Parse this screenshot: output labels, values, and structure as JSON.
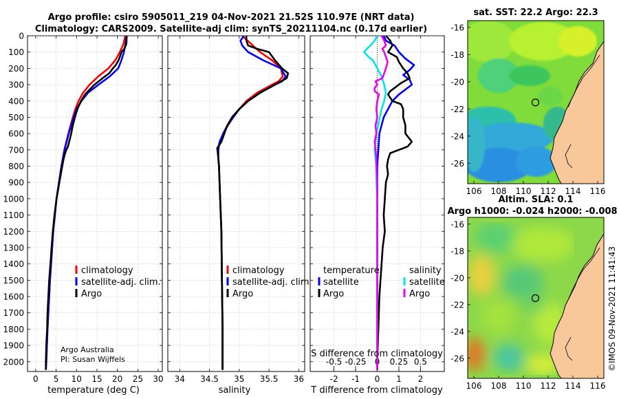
{
  "header": {
    "title_line1": "Argo profile: csiro 5905011_219 04-Nov-2021 21.52S 110.97E (NRT data)",
    "title_line2": "Climatology: CARS2009. Satellite-adj clim: synTS_20211104.nc (0.17d earlier)"
  },
  "colors": {
    "climatology": "#ff0000",
    "satellite_adj": "#0000ff",
    "argo": "#000000",
    "sat_salinity": "#00e5ee",
    "argo_salinity": "#ee00ee",
    "land": "#f8c89a"
  },
  "depth_axis": {
    "ticks": [
      "0",
      "100",
      "200",
      "300",
      "400",
      "500",
      "600",
      "700",
      "800",
      "900",
      "1000",
      "1100",
      "1200",
      "1300",
      "1400",
      "1500",
      "1600",
      "1700",
      "1800",
      "1900",
      "2000"
    ],
    "range": [
      0,
      2060
    ]
  },
  "legends": {
    "climatology": "climatology",
    "satellite_adj": "satellite-adj. clim.",
    "argo": "Argo",
    "temperature": "temperature",
    "salinity": "salinity",
    "satellite": "satellite"
  },
  "credits": {
    "line1": "Argo Australia",
    "line2": "PI: Susan Wijffels"
  },
  "watermark": "©IMOS 09-Nov-2021 11:41:43",
  "chart_data": [
    {
      "type": "line",
      "name": "temperature-profile",
      "xlabel": "temperature (deg C)",
      "ylabel": "depth",
      "xlim": [
        -2,
        31
      ],
      "ylim": [
        2060,
        0
      ],
      "xticks": [
        "0",
        "5",
        "10",
        "15",
        "20",
        "25",
        "30"
      ],
      "xtick_values": [
        0,
        5,
        10,
        15,
        20,
        25,
        30
      ],
      "series": [
        {
          "name": "climatology",
          "color": "#ff0000",
          "depth": [
            0,
            50,
            100,
            150,
            200,
            250,
            300,
            350,
            400,
            450,
            500,
            600,
            700,
            800,
            1000,
            1200,
            1500,
            1800,
            2000,
            2050
          ],
          "values": [
            21.9,
            21.5,
            20.6,
            19.5,
            17.8,
            15.3,
            13.2,
            11.6,
            10.5,
            9.7,
            9.1,
            8.0,
            7.0,
            6.3,
            5.1,
            4.3,
            3.5,
            2.9,
            2.6,
            2.5
          ]
        },
        {
          "name": "satellite-adj. clim.",
          "color": "#0000ff",
          "depth": [
            0,
            50,
            100,
            150,
            200,
            250,
            300,
            350,
            400,
            450,
            500,
            600,
            700,
            800,
            1000,
            1200,
            1500,
            1800,
            2000,
            2050
          ],
          "values": [
            22.2,
            22.0,
            21.6,
            21.0,
            20.2,
            18.1,
            15.4,
            12.8,
            11.2,
            10.0,
            9.3,
            8.1,
            7.1,
            6.3,
            5.1,
            4.3,
            3.5,
            2.9,
            2.6,
            2.5
          ]
        },
        {
          "name": "Argo",
          "color": "#000000",
          "depth": [
            0,
            50,
            80,
            100,
            130,
            150,
            180,
            200,
            230,
            260,
            300,
            330,
            360,
            400,
            450,
            500,
            560,
            600,
            640,
            680,
            700,
            730,
            760,
            800,
            900,
            1000,
            1100,
            1200,
            1300,
            1400,
            1500,
            1600,
            1700,
            1800,
            1900,
            2000,
            2050
          ],
          "values": [
            22.3,
            22.2,
            21.7,
            21.0,
            20.6,
            20.3,
            19.6,
            18.9,
            18.0,
            16.4,
            14.4,
            13.2,
            12.1,
            11.1,
            10.2,
            9.6,
            9.0,
            8.7,
            8.3,
            7.9,
            7.5,
            7.1,
            6.8,
            6.5,
            5.8,
            5.1,
            4.6,
            4.2,
            3.9,
            3.6,
            3.3,
            3.1,
            2.9,
            2.8,
            2.6,
            2.5,
            2.5
          ]
        }
      ]
    },
    {
      "type": "line",
      "name": "salinity-profile",
      "xlabel": "salinity",
      "ylabel": "depth",
      "xlim": [
        33.8,
        36.1
      ],
      "ylim": [
        2060,
        0
      ],
      "xticks": [
        "34",
        "34.5",
        "35",
        "35.5",
        "36"
      ],
      "xtick_values": [
        34,
        34.5,
        35,
        35.5,
        36
      ],
      "series": [
        {
          "name": "climatology",
          "color": "#ff0000",
          "depth": [
            0,
            50,
            100,
            150,
            200,
            250,
            280,
            300,
            350,
            400,
            450,
            500,
            550,
            600,
            650,
            700,
            750,
            800,
            1000,
            1200,
            1500,
            1800,
            2000,
            2050
          ],
          "values": [
            35.05,
            35.2,
            35.35,
            35.55,
            35.7,
            35.73,
            35.66,
            35.55,
            35.3,
            35.12,
            35.0,
            34.9,
            34.81,
            34.73,
            34.67,
            34.64,
            34.65,
            34.66,
            34.68,
            34.7,
            34.71,
            34.72,
            34.72,
            34.72
          ]
        },
        {
          "name": "satellite-adj. clim.",
          "color": "#0000ff",
          "depth": [
            0,
            30,
            60,
            100,
            150,
            200,
            250,
            280,
            300,
            350,
            400,
            450,
            500,
            550,
            600,
            650,
            700,
            750,
            800,
            1000,
            1200,
            1500,
            1800,
            2000,
            2050
          ],
          "values": [
            35.08,
            35.02,
            35.05,
            35.15,
            35.4,
            35.7,
            35.78,
            35.72,
            35.6,
            35.35,
            35.15,
            35.0,
            34.9,
            34.8,
            34.73,
            34.67,
            34.65,
            34.65,
            34.66,
            34.68,
            34.7,
            34.71,
            34.72,
            34.72,
            34.72
          ]
        },
        {
          "name": "Argo",
          "color": "#000000",
          "depth": [
            0,
            30,
            60,
            80,
            100,
            150,
            200,
            230,
            260,
            280,
            300,
            350,
            400,
            450,
            500,
            550,
            600,
            650,
            690,
            720,
            760,
            800,
            1000,
            1200,
            1500,
            1800,
            2000,
            2050
          ],
          "values": [
            35.12,
            35.12,
            35.15,
            35.3,
            35.5,
            35.6,
            35.72,
            35.82,
            35.8,
            35.7,
            35.6,
            35.35,
            35.15,
            35.0,
            34.88,
            34.8,
            34.75,
            34.7,
            34.63,
            34.64,
            34.65,
            34.66,
            34.68,
            34.7,
            34.71,
            34.72,
            34.72,
            34.72
          ]
        }
      ]
    },
    {
      "type": "line",
      "name": "difference-profile",
      "xlabel": "T difference from climatology",
      "x2label": "S difference from climatology",
      "ylabel": "depth",
      "xlim": [
        -3.1,
        3.1
      ],
      "ylim": [
        2060,
        0
      ],
      "xticks": [
        "-2",
        "-1",
        "0",
        "1",
        "2"
      ],
      "xtick_values": [
        -2,
        -1,
        0,
        1,
        2
      ],
      "x2ticks": [
        "-0.5",
        "-0.25",
        "0",
        "0.25",
        "0.5"
      ],
      "x2tick_values": [
        -0.5,
        -0.25,
        0,
        0.25,
        0.5
      ],
      "x2lim": [
        -0.775,
        0.775
      ],
      "zero_line": "dotted",
      "series": [
        {
          "name": "temperature satellite",
          "color": "#0000ff",
          "axis": "T",
          "depth": [
            0,
            30,
            60,
            100,
            140,
            180,
            210,
            240,
            270,
            300,
            330,
            360,
            400,
            450,
            500,
            600,
            700,
            800,
            1000,
            1500,
            2000,
            2050
          ],
          "values": [
            0.3,
            0.4,
            0.8,
            1.0,
            1.3,
            1.7,
            1.5,
            1.2,
            1.5,
            1.6,
            1.3,
            1.0,
            0.7,
            0.5,
            0.3,
            0.1,
            0.05,
            0.0,
            0.0,
            0.0,
            0.0,
            0.0
          ]
        },
        {
          "name": "temperature Argo",
          "color": "#000000",
          "axis": "T",
          "depth": [
            0,
            30,
            60,
            80,
            100,
            130,
            160,
            200,
            230,
            260,
            290,
            320,
            340,
            360,
            400,
            420,
            450,
            500,
            550,
            600,
            650,
            680,
            700,
            720,
            760,
            800,
            850,
            900,
            1000,
            1100,
            1200,
            1300,
            1400,
            1500,
            1600,
            1800,
            2000,
            2050
          ],
          "values": [
            0.4,
            0.6,
            0.7,
            0.6,
            0.5,
            0.9,
            1.0,
            1.2,
            1.4,
            1.5,
            1.1,
            0.8,
            0.6,
            0.5,
            0.7,
            1.1,
            1.2,
            1.2,
            1.3,
            1.3,
            1.6,
            1.4,
            1.0,
            0.6,
            0.5,
            0.45,
            0.5,
            0.4,
            0.35,
            0.3,
            0.35,
            0.25,
            0.2,
            0.15,
            0.1,
            0.05,
            0.0,
            0.0
          ]
        },
        {
          "name": "salinity satellite",
          "color": "#00e5ee",
          "axis": "S",
          "depth": [
            0,
            30,
            60,
            80,
            100,
            130,
            150,
            200,
            250,
            300,
            350,
            400,
            450,
            500,
            550,
            600,
            650,
            700,
            800,
            900,
            1000,
            1500,
            2000,
            2050
          ],
          "values": [
            0.0,
            -0.03,
            -0.08,
            -0.12,
            -0.15,
            -0.1,
            -0.05,
            0.0,
            0.05,
            0.08,
            0.1,
            0.08,
            0.05,
            0.03,
            0.01,
            -0.01,
            -0.02,
            -0.03,
            -0.01,
            -0.01,
            0.0,
            0.0,
            0.0,
            0.0
          ]
        },
        {
          "name": "salinity Argo",
          "color": "#ee00ee",
          "axis": "S",
          "depth": [
            0,
            30,
            60,
            80,
            100,
            130,
            160,
            200,
            230,
            260,
            280,
            300,
            320,
            340,
            360,
            400,
            450,
            500,
            550,
            600,
            650,
            700,
            750,
            800,
            900,
            1000,
            1500,
            2000,
            2050
          ],
          "values": [
            0.05,
            0.08,
            0.1,
            0.06,
            0.08,
            0.1,
            0.12,
            0.1,
            0.08,
            0.06,
            -0.02,
            0.0,
            -0.03,
            -0.03,
            0.02,
            0.0,
            -0.01,
            0.0,
            -0.02,
            -0.01,
            -0.03,
            -0.02,
            -0.01,
            -0.01,
            0.0,
            0.0,
            0.0,
            0.0,
            0.0
          ]
        }
      ]
    },
    {
      "type": "heatmap",
      "name": "sst-map",
      "title": "sat. SST: 22.2 Argo: 22.3",
      "xlim": [
        105.5,
        116.5
      ],
      "ylim": [
        -27.5,
        -15.5
      ],
      "xticks": [
        "106",
        "108",
        "110",
        "112",
        "114",
        "116"
      ],
      "xtick_values": [
        106,
        108,
        110,
        112,
        114,
        116
      ],
      "yticks": [
        "-16",
        "-18",
        "-20",
        "-22",
        "-24",
        "-26"
      ],
      "ytick_values": [
        -16,
        -18,
        -20,
        -22,
        -24,
        -26
      ],
      "float_position": {
        "lon": 110.97,
        "lat": -21.52
      }
    },
    {
      "type": "heatmap",
      "name": "sla-map",
      "title_line1": "Altim. SLA: 0.1",
      "title_line2": "Argo h1000: -0.024 h2000: -0.008",
      "xlim": [
        105.5,
        116.5
      ],
      "ylim": [
        -27.5,
        -15.5
      ],
      "xticks": [
        "106",
        "108",
        "110",
        "112",
        "114",
        "116"
      ],
      "xtick_values": [
        106,
        108,
        110,
        112,
        114,
        116
      ],
      "yticks": [
        "-16",
        "-18",
        "-20",
        "-22",
        "-24",
        "-26"
      ],
      "ytick_values": [
        -16,
        -18,
        -20,
        -22,
        -24,
        -26
      ],
      "float_position": {
        "lon": 110.97,
        "lat": -21.52
      }
    }
  ]
}
